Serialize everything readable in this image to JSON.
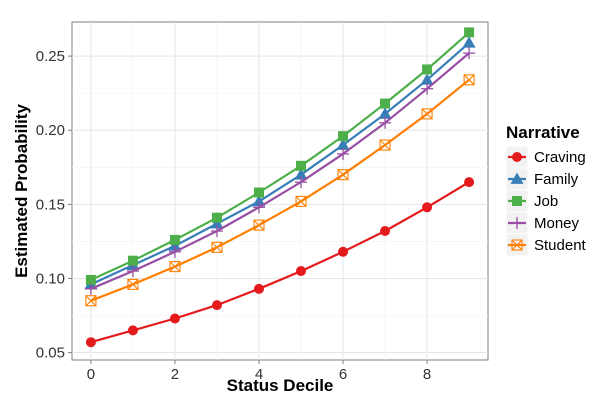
{
  "chart_data": {
    "type": "line",
    "xlabel": "Status Decile",
    "ylabel": "Estimated Probability",
    "x": [
      0,
      1,
      2,
      3,
      4,
      5,
      6,
      7,
      8,
      9
    ],
    "xlim": [
      -0.45,
      9.45
    ],
    "ylim": [
      0.045,
      0.273
    ],
    "xticks": [
      0,
      2,
      4,
      6,
      8
    ],
    "xtick_labels": [
      "0",
      "2",
      "4",
      "6",
      "8"
    ],
    "yticks": [
      0.05,
      0.1,
      0.15,
      0.2,
      0.25
    ],
    "ytick_labels": [
      "0.05",
      "0.10",
      "0.15",
      "0.20",
      "0.25"
    ],
    "grid": true,
    "legend_title": "Narrative",
    "legend_position": "right",
    "series": [
      {
        "name": "Craving",
        "color": "#e41a1c",
        "marker": "circle",
        "values": [
          0.057,
          0.065,
          0.073,
          0.082,
          0.093,
          0.105,
          0.118,
          0.132,
          0.148,
          0.165
        ]
      },
      {
        "name": "Family",
        "color": "#377eb8",
        "marker": "triangle",
        "values": [
          0.096,
          0.109,
          0.122,
          0.137,
          0.152,
          0.17,
          0.19,
          0.211,
          0.234,
          0.259
        ]
      },
      {
        "name": "Job",
        "color": "#4daf4a",
        "marker": "square",
        "values": [
          0.099,
          0.112,
          0.126,
          0.141,
          0.158,
          0.176,
          0.196,
          0.218,
          0.241,
          0.266
        ]
      },
      {
        "name": "Money",
        "color": "#984ea3",
        "marker": "plus",
        "values": [
          0.093,
          0.105,
          0.118,
          0.132,
          0.148,
          0.165,
          0.184,
          0.205,
          0.228,
          0.252
        ]
      },
      {
        "name": "Student",
        "color": "#ff7f00",
        "marker": "boxed-x",
        "values": [
          0.085,
          0.096,
          0.108,
          0.121,
          0.136,
          0.152,
          0.17,
          0.19,
          0.211,
          0.234
        ]
      }
    ]
  }
}
